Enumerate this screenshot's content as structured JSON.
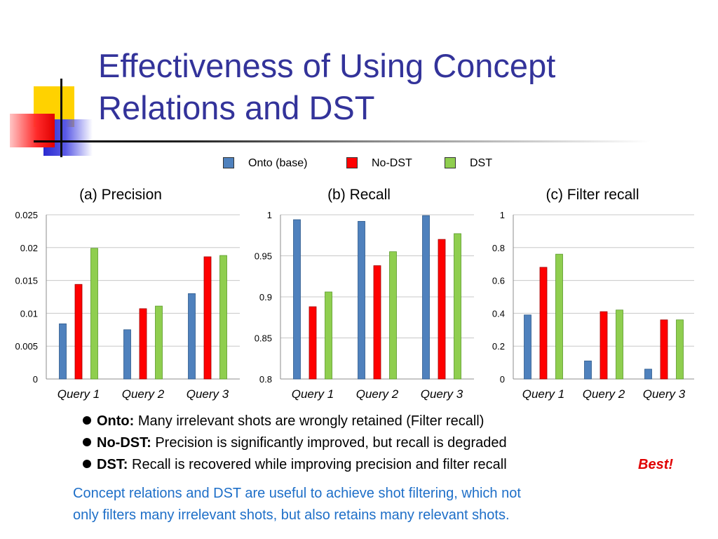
{
  "slide": {
    "title": "Effectiveness of Using Concept\nRelations and DST"
  },
  "legend": [
    {
      "label": "Onto (base)",
      "color": "#4f81bd"
    },
    {
      "label": "No-DST",
      "color": "#ff0000"
    },
    {
      "label": "DST",
      "color": "#8fce4f"
    }
  ],
  "chart_data": [
    {
      "type": "bar",
      "title": "(a) Precision",
      "categories": [
        "Query 1",
        "Query 2",
        "Query 3"
      ],
      "series": [
        {
          "name": "Onto (base)",
          "values": [
            0.0084,
            0.0075,
            0.013
          ]
        },
        {
          "name": "No-DST",
          "values": [
            0.0144,
            0.0107,
            0.0186
          ]
        },
        {
          "name": "DST",
          "values": [
            0.0199,
            0.0111,
            0.0188
          ]
        }
      ],
      "ylim": [
        0,
        0.025
      ],
      "yticks": [
        "0",
        "0.005",
        "0.01",
        "0.015",
        "0.02",
        "0.025"
      ],
      "grid": true
    },
    {
      "type": "bar",
      "title": "(b) Recall",
      "categories": [
        "Query 1",
        "Query 2",
        "Query 3"
      ],
      "series": [
        {
          "name": "Onto (base)",
          "values": [
            0.994,
            0.992,
            0.999
          ]
        },
        {
          "name": "No-DST",
          "values": [
            0.888,
            0.938,
            0.97
          ]
        },
        {
          "name": "DST",
          "values": [
            0.906,
            0.955,
            0.977
          ]
        }
      ],
      "ylim": [
        0.8,
        1
      ],
      "yticks": [
        "0.8",
        "0.85",
        "0.9",
        "0.95",
        "1"
      ],
      "grid": true
    },
    {
      "type": "bar",
      "title": "(c) Filter recall",
      "categories": [
        "Query 1",
        "Query 2",
        "Query 3"
      ],
      "series": [
        {
          "name": "Onto (base)",
          "values": [
            0.39,
            0.11,
            0.06
          ]
        },
        {
          "name": "No-DST",
          "values": [
            0.68,
            0.41,
            0.36
          ]
        },
        {
          "name": "DST",
          "values": [
            0.76,
            0.42,
            0.36
          ]
        }
      ],
      "ylim": [
        0,
        1
      ],
      "yticks": [
        "0",
        "0.2",
        "0.4",
        "0.6",
        "0.8",
        "1"
      ],
      "grid": true
    }
  ],
  "bullets": [
    {
      "key": "Onto:",
      "text": " Many irrelevant shots are wrongly retained (Filter recall)"
    },
    {
      "key": "No-DST:",
      "text": " Precision is significantly improved, but recall is degraded"
    },
    {
      "key": "DST:",
      "text": " Recall is recovered while improving precision and filter recall"
    }
  ],
  "best_label": "Best!",
  "conclusion": "Concept relations and DST are useful to achieve shot filtering, which not\nonly filters many irrelevant shots, but also retains many relevant shots."
}
